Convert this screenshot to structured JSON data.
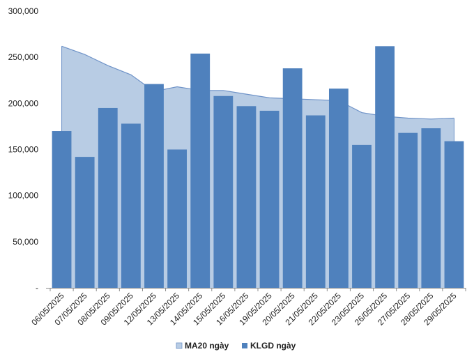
{
  "chart_data": {
    "type": "bar",
    "categories": [
      "06/05/2025",
      "07/05/2025",
      "08/05/2025",
      "09/05/2025",
      "12/05/2025",
      "13/05/2025",
      "14/05/2025",
      "15/05/2025",
      "16/05/2025",
      "19/05/2025",
      "20/05/2025",
      "21/05/2025",
      "22/05/2025",
      "23/05/2025",
      "26/05/2025",
      "27/05/2025",
      "28/05/2025",
      "29/05/2025"
    ],
    "series": [
      {
        "name": "MA20 ngày",
        "kind": "area",
        "color": "#b8cce4",
        "line_color": "#6f93c8",
        "values": [
          262000,
          253000,
          241000,
          231000,
          213000,
          218000,
          214000,
          214000,
          210000,
          206000,
          205000,
          204000,
          203000,
          190000,
          186000,
          184000,
          183000,
          184000
        ]
      },
      {
        "name": "KLGD ngày",
        "kind": "bar",
        "color": "#4f81bd",
        "values": [
          170000,
          142000,
          195000,
          178000,
          221000,
          150000,
          254000,
          208000,
          197000,
          192000,
          238000,
          187000,
          216000,
          155000,
          262000,
          168000,
          173000,
          159000
        ]
      }
    ],
    "yticks": [
      "300,000",
      "250,000",
      "200,000",
      "150,000",
      "100,000",
      "50,000",
      "-"
    ],
    "ylim": [
      0,
      300000
    ],
    "grid": false,
    "legend_position": "bottom"
  }
}
